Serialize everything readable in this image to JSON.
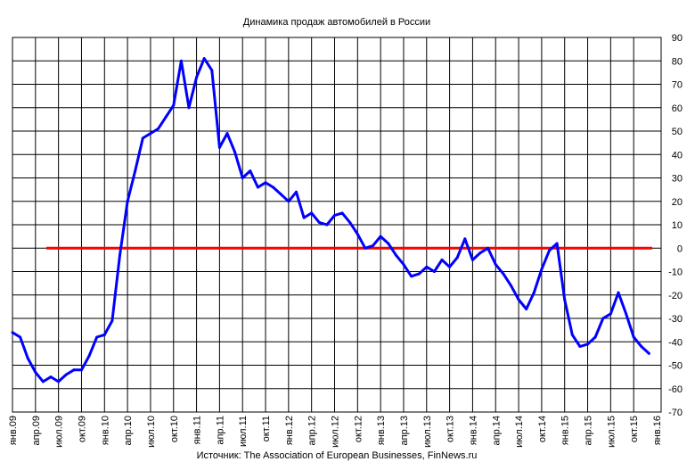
{
  "chart_data": {
    "type": "line",
    "title": "Динамика продаж автомобилей в России",
    "source": "Источник: The Association of European Businesses, FinNews.ru",
    "xlabel": "",
    "ylabel": "",
    "ylim": [
      -70,
      90
    ],
    "y_ticks": [
      90,
      80,
      70,
      60,
      50,
      40,
      30,
      20,
      10,
      0,
      -10,
      -20,
      -30,
      -40,
      -50,
      -60,
      -70
    ],
    "x_tick_labels": [
      "янв.09",
      "апр.09",
      "июл.09",
      "окт.09",
      "янв.10",
      "апр.10",
      "июл.10",
      "окт.10",
      "янв.11",
      "апр.11",
      "июл.11",
      "окт.11",
      "янв.12",
      "апр.12",
      "июл.12",
      "окт.12",
      "янв.13",
      "апр.13",
      "июл.13",
      "окт.13",
      "янв.14",
      "апр.14",
      "июл.14",
      "окт.14",
      "янв.15",
      "апр.15",
      "июл.15",
      "окт.15",
      "янв.16"
    ],
    "grid": true,
    "series": [
      {
        "color": "#0000ff",
        "values": [
          -36,
          -38,
          -47,
          -53,
          -57,
          -55,
          -57,
          -54,
          -52,
          -52,
          -46,
          -38,
          -37,
          -31,
          -3,
          20,
          33,
          47,
          49,
          51,
          56,
          61,
          80,
          60,
          73,
          81,
          76,
          43,
          49,
          41,
          30,
          33,
          26,
          28,
          26,
          23,
          20,
          24,
          13,
          15,
          11,
          10,
          14,
          15,
          11,
          6,
          0,
          1,
          5,
          2,
          -3,
          -7,
          -12,
          -11,
          -8,
          -10,
          -5,
          -8,
          -4,
          4,
          -5,
          -2,
          0,
          -7,
          -11,
          -16,
          -22,
          -26,
          -19,
          -9,
          -1,
          2,
          -22,
          -37,
          -42,
          -41,
          -38,
          -30,
          -28,
          -19,
          -28,
          -38,
          -42,
          -45
        ]
      },
      {
        "color": "#ff0000",
        "values": [
          0,
          0
        ]
      }
    ]
  }
}
